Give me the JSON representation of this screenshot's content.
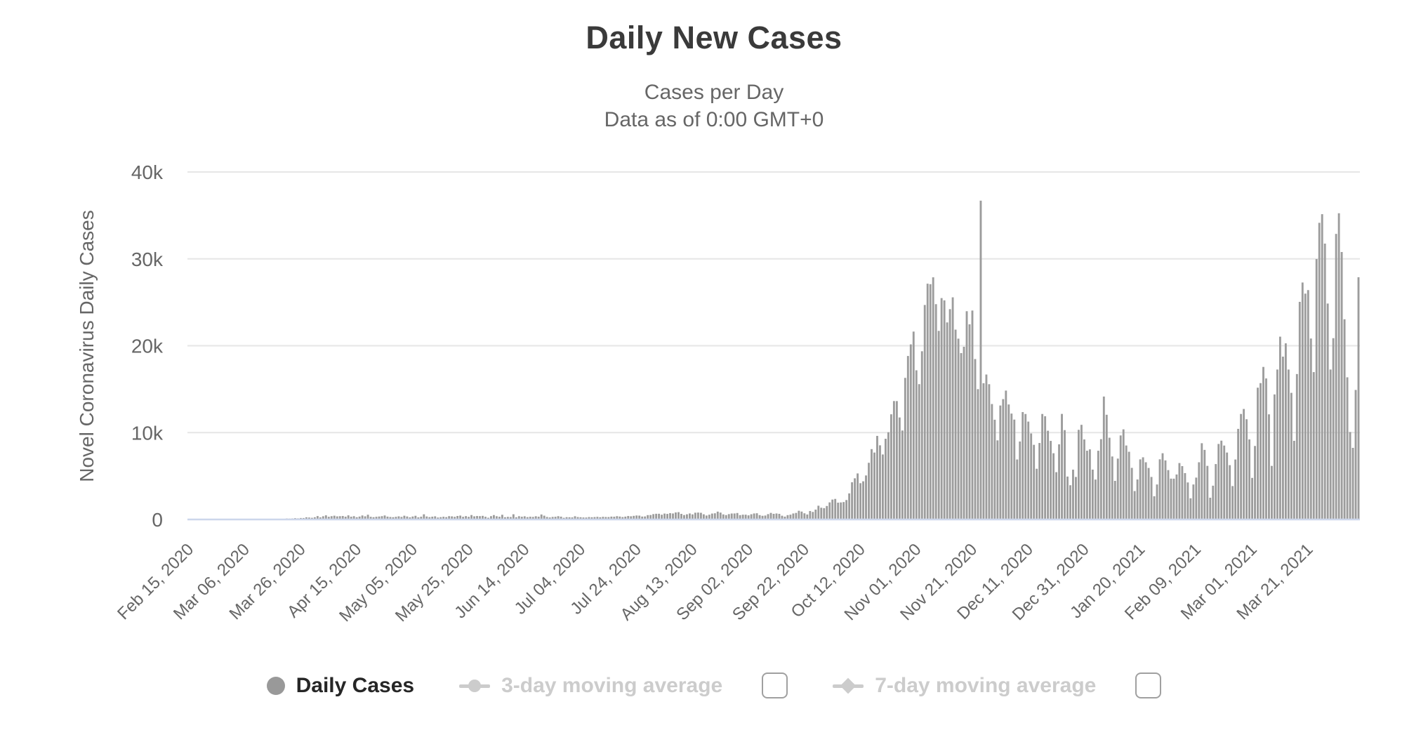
{
  "header": {
    "title": "Daily New Cases",
    "subtitle_line1": "Cases per Day",
    "subtitle_line2": "Data as of 0:00 GMT+0"
  },
  "legend": {
    "items": [
      {
        "label": "Daily Cases",
        "marker": "circle",
        "enabled": true,
        "has_checkbox": false
      },
      {
        "label": "3-day moving average",
        "marker": "line-circle",
        "enabled": false,
        "has_checkbox": true,
        "checked": false
      },
      {
        "label": "7-day moving average",
        "marker": "line-diamond",
        "enabled": false,
        "has_checkbox": true,
        "checked": false
      }
    ]
  },
  "colors": {
    "bar": "#9c9c9c",
    "grid": "#e6e6e6",
    "axis_line": "#ccd6eb",
    "title": "#3a3a3a",
    "subtitle": "#666666",
    "tick_label": "#666666",
    "legend_enabled_text": "#262626",
    "legend_disabled": "#cccccc",
    "marker_enabled": "#999999",
    "checkbox_border": "#a0a0a0"
  },
  "chart_data": {
    "type": "bar",
    "title": "Daily New Cases",
    "subtitle": [
      "Cases per Day",
      "Data as of 0:00 GMT+0"
    ],
    "ylabel": "Novel Coronavirus Daily Cases",
    "series_name": "Daily Cases",
    "legend_position": "bottom",
    "grid": "horizontal-only",
    "start_date": "2020-02-15",
    "end_date": "2021-04-08",
    "ylim": [
      0,
      40000
    ],
    "yticks": [
      {
        "value": 0,
        "label": "0"
      },
      {
        "value": 10000,
        "label": "10k"
      },
      {
        "value": 20000,
        "label": "20k"
      },
      {
        "value": 30000,
        "label": "30k"
      },
      {
        "value": 40000,
        "label": "40k"
      }
    ],
    "x_tick_interval_days": 20,
    "x_tick_labels": [
      "Feb 15, 2020",
      "Mar 06, 2020",
      "Mar 26, 2020",
      "Apr 15, 2020",
      "May 05, 2020",
      "May 25, 2020",
      "Jun 14, 2020",
      "Jul 04, 2020",
      "Jul 24, 2020",
      "Aug 13, 2020",
      "Sep 02, 2020",
      "Sep 22, 2020",
      "Oct 12, 2020",
      "Nov 01, 2020",
      "Nov 21, 2020",
      "Dec 11, 2020",
      "Dec 31, 2020",
      "Jan 20, 2021",
      "Feb 09, 2021",
      "Mar 01, 2021",
      "Mar 21, 2021"
    ],
    "values": [
      0,
      0,
      0,
      0,
      0,
      0,
      0,
      0,
      0,
      0,
      0,
      0,
      0,
      0,
      0,
      0,
      0,
      0,
      1,
      1,
      3,
      1,
      5,
      6,
      5,
      9,
      20,
      19,
      34,
      21,
      52,
      61,
      49,
      68,
      43,
      111,
      98,
      115,
      152,
      126,
      170,
      168,
      249,
      224,
      193,
      256,
      392,
      243,
      370,
      475,
      311,
      380,
      435,
      357,
      380,
      401,
      318,
      475,
      318,
      380,
      260,
      336,
      461,
      363,
      545,
      306,
      263,
      310,
      342,
      381,
      461,
      329,
      285,
      263,
      307,
      362,
      292,
      432,
      345,
      248,
      340,
      425,
      245,
      319,
      595,
      345,
      273,
      321,
      364,
      225,
      270,
      315,
      272,
      383,
      356,
      305,
      404,
      448,
      306,
      387,
      303,
      510,
      362,
      399,
      383,
      416,
      312,
      199,
      381,
      506,
      375,
      315,
      541,
      260,
      300,
      283,
      599,
      256,
      378,
      314,
      366,
      272,
      317,
      294,
      370,
      318,
      576,
      436,
      289,
      234,
      293,
      310,
      379,
      325,
      193,
      267,
      256,
      239,
      371,
      277,
      257,
      231,
      228,
      279,
      257,
      277,
      304,
      259,
      306,
      286,
      279,
      329,
      316,
      380,
      337,
      279,
      328,
      399,
      366,
      418,
      458,
      444,
      337,
      349,
      502,
      512,
      615,
      657,
      658,
      548,
      680,
      640,
      726,
      692,
      809,
      843,
      645,
      512,
      595,
      692,
      587,
      780,
      795,
      769,
      595,
      456,
      550,
      682,
      712,
      903,
      793,
      584,
      507,
      615,
      687,
      691,
      744,
      502,
      551,
      550,
      475,
      600,
      691,
      715,
      502,
      424,
      454,
      615,
      757,
      649,
      691,
      650,
      432,
      328,
      501,
      554,
      691,
      754,
      1002,
      910,
      711,
      574,
      974,
      867,
      1136,
      1584,
      1350,
      1306,
      1552,
      1967,
      2292,
      2367,
      1934,
      1962,
      2006,
      2236,
      3003,
      4280,
      4739,
      5300,
      4178,
      4394,
      5068,
      6526,
      8099,
      7705,
      9622,
      8536,
      7482,
      9291,
      10040,
      12107,
      13632,
      13628,
      11742,
      10241,
      16300,
      18820,
      20156,
      21629,
      17171,
      15578,
      19364,
      24692,
      27143,
      27086,
      27875,
      24785,
      21713,
      25484,
      25221,
      22683,
      24213,
      25571,
      21854,
      20816,
      19152,
      19883,
      23975,
      22464,
      24051,
      18467,
      15002,
      36700,
      15686,
      16687,
      15571,
      13290,
      11483,
      9105,
      13120,
      13855,
      14838,
      13239,
      12190,
      11497,
      6907,
      8977,
      12361,
      12142,
      11267,
      9902,
      8594,
      5838,
      8805,
      12145,
      11883,
      10214,
      9045,
      7624,
      5447,
      8651,
      12151,
      10286,
      4941,
      3941,
      5734,
      4896,
      10321,
      10896,
      9213,
      7916,
      8070,
      5739,
      4596,
      7914,
      9246,
      14151,
      12054,
      9410,
      7251,
      4442,
      7007,
      9674,
      10375,
      8516,
      7795,
      5941,
      3271,
      4604,
      6919,
      7156,
      6586,
      5931,
      4894,
      2674,
      4029,
      6925,
      7624,
      6802,
      5683,
      4703,
      4699,
      5178,
      6496,
      6144,
      5338,
      4261,
      2437,
      4029,
      4820,
      6586,
      8777,
      8010,
      6170,
      2504,
      3890,
      6379,
      8694,
      9073,
      8510,
      7704,
      6253,
      3846,
      6902,
      10429,
      12146,
      12721,
      11539,
      9217,
      4786,
      8462,
      15170,
      15698,
      17560,
      16235,
      12103,
      6170,
      14396,
      17260,
      21045,
      18746,
      20275,
      17259,
      14578,
      9054,
      16741,
      25052,
      27278,
      25998,
      26405,
      20832,
      16965,
      29978,
      34151,
      35143,
      31757,
      24856,
      17260,
      20870,
      32874,
      35251,
      30789,
      23045,
      16365,
      10066,
      8245,
      14910,
      27887
    ]
  }
}
